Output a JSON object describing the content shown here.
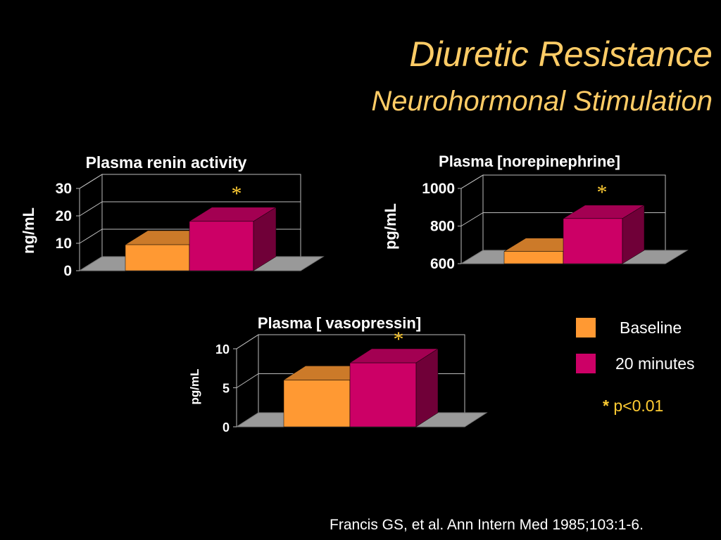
{
  "slide": {
    "title": "Diuretic Resistance",
    "subtitle": "Neurohormonal Stimulation",
    "citation": "Francis GS, et al. Ann Intern Med 1985;103:1-6."
  },
  "legend": {
    "items": [
      {
        "label": "Baseline",
        "color": "#ff9933"
      },
      {
        "label": "20 minutes",
        "color": "#cc0066"
      }
    ],
    "pvalue": {
      "star": "*",
      "text": " p<0.01"
    }
  },
  "chart_data": [
    {
      "type": "bar",
      "title": "Plasma renin activity",
      "ylabel": "ng/mL",
      "ylim": [
        0,
        30
      ],
      "yticks": [
        "0",
        "10",
        "20",
        "30"
      ],
      "categories": [
        "Baseline",
        "20 minutes"
      ],
      "values": [
        9.5,
        18
      ],
      "annotation": "*"
    },
    {
      "type": "bar",
      "title": "Plasma [norepinephrine]",
      "ylabel": "pg/mL",
      "ylim": [
        600,
        1000
      ],
      "yticks": [
        "600",
        "800",
        "1000"
      ],
      "categories": [
        "Baseline",
        "20 minutes"
      ],
      "values": [
        665,
        840
      ],
      "annotation": "*"
    },
    {
      "type": "bar",
      "title": "Plasma [ vasopressin]",
      "ylabel": "pg/mL",
      "ylim": [
        0,
        10
      ],
      "yticks": [
        "0",
        "5",
        "10"
      ],
      "categories": [
        "Baseline",
        "20 minutes"
      ],
      "values": [
        6,
        8.2
      ],
      "annotation": "*"
    }
  ]
}
